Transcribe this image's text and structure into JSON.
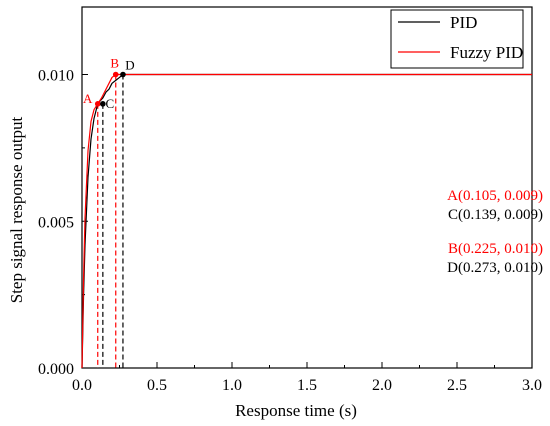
{
  "chart_data": {
    "type": "line",
    "title": "",
    "xlabel": "Response time (s)",
    "ylabel": "Step signal response output",
    "xlim": [
      0,
      3.0
    ],
    "ylim": [
      0,
      0.0123
    ],
    "x_ticks": [
      "0.0",
      "0.5",
      "1.0",
      "1.5",
      "2.0",
      "2.5",
      "3.0"
    ],
    "y_ticks": [
      "0.000",
      "0.005",
      "0.010"
    ],
    "grid": false,
    "legend_position": "top-right",
    "series": [
      {
        "name": "PID",
        "color": "#000000",
        "x": [
          0,
          0.01,
          0.02,
          0.04,
          0.06,
          0.08,
          0.1,
          0.12,
          0.139,
          0.16,
          0.18,
          0.2,
          0.225,
          0.25,
          0.273,
          0.3,
          0.4,
          0.5,
          1.0,
          1.5,
          2.0,
          2.5,
          3.0
        ],
        "values": [
          0,
          0.0024,
          0.0042,
          0.0065,
          0.0078,
          0.0085,
          0.0089,
          0.0091,
          0.0092,
          0.0094,
          0.0095,
          0.0097,
          0.0098,
          0.0099,
          0.01,
          0.01,
          0.01,
          0.01,
          0.01,
          0.01,
          0.01,
          0.01,
          0.01
        ]
      },
      {
        "name": "Fuzzy PID",
        "color": "#ff0000",
        "x": [
          0,
          0.01,
          0.02,
          0.04,
          0.06,
          0.08,
          0.105,
          0.13,
          0.15,
          0.18,
          0.2,
          0.225,
          0.25,
          0.3,
          0.5,
          1.0,
          1.5,
          2.0,
          2.5,
          3.0
        ],
        "values": [
          0,
          0.003,
          0.0051,
          0.0074,
          0.0084,
          0.0088,
          0.009,
          0.0092,
          0.0094,
          0.0097,
          0.0099,
          0.01,
          0.01,
          0.01,
          0.01,
          0.01,
          0.01,
          0.01,
          0.01,
          0.01
        ]
      }
    ],
    "markers": [
      {
        "label": "A",
        "x": 0.105,
        "y": 0.009,
        "color": "#ff0000"
      },
      {
        "label": "B",
        "x": 0.225,
        "y": 0.01,
        "color": "#ff0000"
      },
      {
        "label": "C",
        "x": 0.139,
        "y": 0.009,
        "color": "#000000"
      },
      {
        "label": "D",
        "x": 0.273,
        "y": 0.01,
        "color": "#000000"
      }
    ],
    "annotations": [
      {
        "text": "A(0.105, 0.009)",
        "color": "#ff0000"
      },
      {
        "text": "C(0.139, 0.009)",
        "color": "#000000"
      },
      {
        "text": "B(0.225, 0.010)",
        "color": "#ff0000"
      },
      {
        "text": "D(0.273, 0.010)",
        "color": "#000000"
      }
    ]
  }
}
